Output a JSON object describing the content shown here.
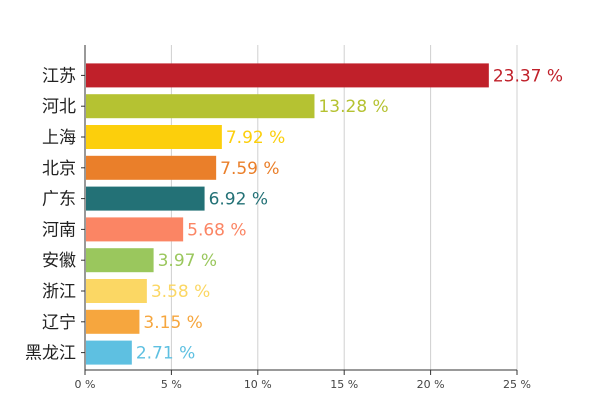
{
  "chart_data": {
    "type": "bar",
    "orientation": "horizontal",
    "categories": [
      "江苏",
      "河北",
      "上海",
      "北京",
      "广东",
      "河南",
      "安徽",
      "浙江",
      "辽宁",
      "黑龙江"
    ],
    "values": [
      23.37,
      13.28,
      7.92,
      7.59,
      6.92,
      5.68,
      3.97,
      3.58,
      3.15,
      2.71
    ],
    "value_labels": [
      "23.37 %",
      "13.28 %",
      "7.92 %",
      "7.59 %",
      "6.92 %",
      "5.68 %",
      "3.97 %",
      "3.58 %",
      "3.15 %",
      "2.71 %"
    ],
    "colors": [
      "#c0202a",
      "#b5c232",
      "#fccf0c",
      "#ea7f2a",
      "#237176",
      "#fb8564",
      "#9ac75d",
      "#fbd764",
      "#f6a63e",
      "#5ec0e1"
    ],
    "x_ticks": [
      0,
      5,
      10,
      15,
      20,
      25
    ],
    "x_tick_labels": [
      "0 %",
      "5 %",
      "10 %",
      "15 %",
      "20 %",
      "25 %"
    ],
    "xlim": [
      0,
      25
    ],
    "grid": true,
    "title": "",
    "xlabel": "",
    "ylabel": ""
  }
}
